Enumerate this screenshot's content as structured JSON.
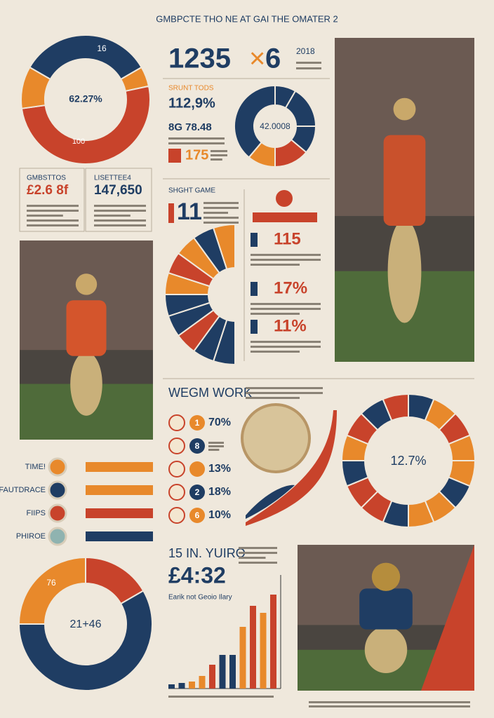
{
  "header": {
    "title": "GMBPCTE THO NE AT GAI THE OMATER 2"
  },
  "donut_top_left": {
    "top": "16",
    "center": "62.27%",
    "bottom": "100"
  },
  "stat_boxes": [
    {
      "label": "GMBSTTOS",
      "value": "£2.6 8f"
    },
    {
      "label": "LISETTEE4",
      "value": "147,650"
    }
  ],
  "headline": {
    "left": "1235",
    "sign": "×",
    "right": "6",
    "year": "2018"
  },
  "stats": {
    "label": "SRUNT TODS",
    "value": "112,9%",
    "row1": "8G 78.48",
    "row2": "175",
    "donut": "42.0008"
  },
  "game": {
    "label": "SHGHT GAME",
    "value": "11",
    "items": [
      "115",
      "17%",
      "11%"
    ]
  },
  "work": {
    "title": "WEGM WORK",
    "items": [
      {
        "num": "1",
        "pct": "70%"
      },
      {
        "num": "8",
        "pct": ""
      },
      {
        "num": "",
        "pct": "13%"
      },
      {
        "num": "2",
        "pct": "18%"
      },
      {
        "num": "6",
        "pct": "10%"
      }
    ],
    "donut": "12.7%"
  },
  "legend": [
    "TIME!",
    "FAUTDRACE",
    "FIIPS",
    "PHIROE"
  ],
  "bottom": {
    "donut_top": "76",
    "donut_center": "21+46",
    "title": "15 IN. YUIRO",
    "value": "£4:32",
    "caption": "Earik not Geoio Ilary"
  }
}
